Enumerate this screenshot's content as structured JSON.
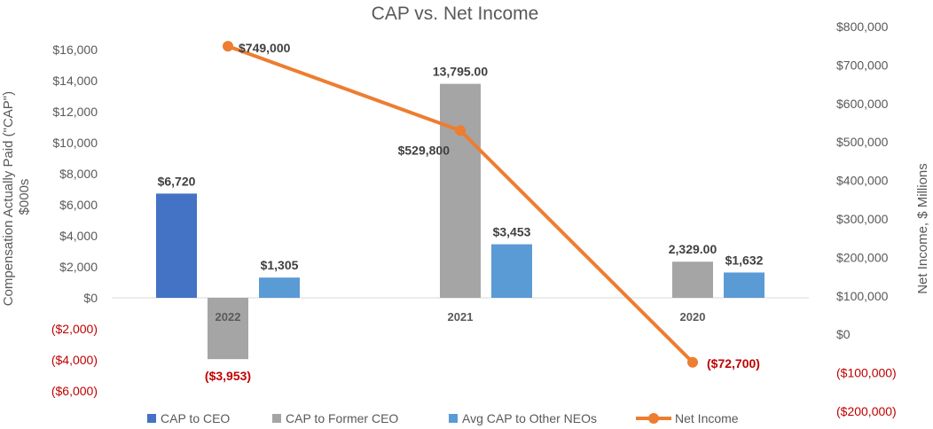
{
  "chart_data": {
    "type": "bar",
    "title": "CAP vs. Net Income",
    "categories": [
      "2022",
      "2021",
      "2020"
    ],
    "series": [
      {
        "name": "CAP to CEO",
        "axis": "left",
        "values": [
          6720,
          null,
          null
        ],
        "labels": [
          "$6,720",
          "",
          ""
        ],
        "color": "#4472c4"
      },
      {
        "name": "CAP to Former CEO",
        "axis": "left",
        "values": [
          -3953,
          13795,
          2329
        ],
        "labels": [
          "($3,953)",
          "13,795.00",
          "2,329.00"
        ],
        "color": "#a5a5a5"
      },
      {
        "name": "Avg CAP to Other NEOs",
        "axis": "left",
        "values": [
          1305,
          3453,
          1632
        ],
        "labels": [
          "$1,305",
          "$3,453",
          "$1,632"
        ],
        "color": "#5b9bd5"
      },
      {
        "name": "Net Income",
        "type": "line",
        "axis": "right",
        "values": [
          749000,
          529800,
          -72700
        ],
        "labels": [
          "$749,000",
          "$529,800",
          "($72,700)"
        ],
        "color": "#ed7d31"
      }
    ],
    "ylabel": "Compensation Actually Paid (\"CAP\") $000s",
    "ylim": [
      -6000,
      16000
    ],
    "yticks": [
      16000,
      14000,
      12000,
      10000,
      8000,
      6000,
      4000,
      2000,
      0,
      -2000,
      -4000,
      -6000
    ],
    "ytick_labels": [
      "$16,000",
      "$14,000",
      "$12,000",
      "$10,000",
      "$8,000",
      "$6,000",
      "$4,000",
      "$2,000",
      "$0",
      "($2,000)",
      "($4,000)",
      "($6,000)"
    ],
    "y2label": "Net Income, $ Millions",
    "y2lim": [
      -200000,
      800000
    ],
    "y2ticks": [
      800000,
      700000,
      600000,
      500000,
      400000,
      300000,
      200000,
      100000,
      0,
      -100000,
      -200000
    ],
    "y2tick_labels": [
      "$800,000",
      "$700,000",
      "$600,000",
      "$500,000",
      "$400,000",
      "$300,000",
      "$200,000",
      "$100,000",
      "$0",
      "($100,000)",
      "($200,000)"
    ],
    "grid": false,
    "legend": "bottom",
    "negative_color": "#c00000"
  }
}
